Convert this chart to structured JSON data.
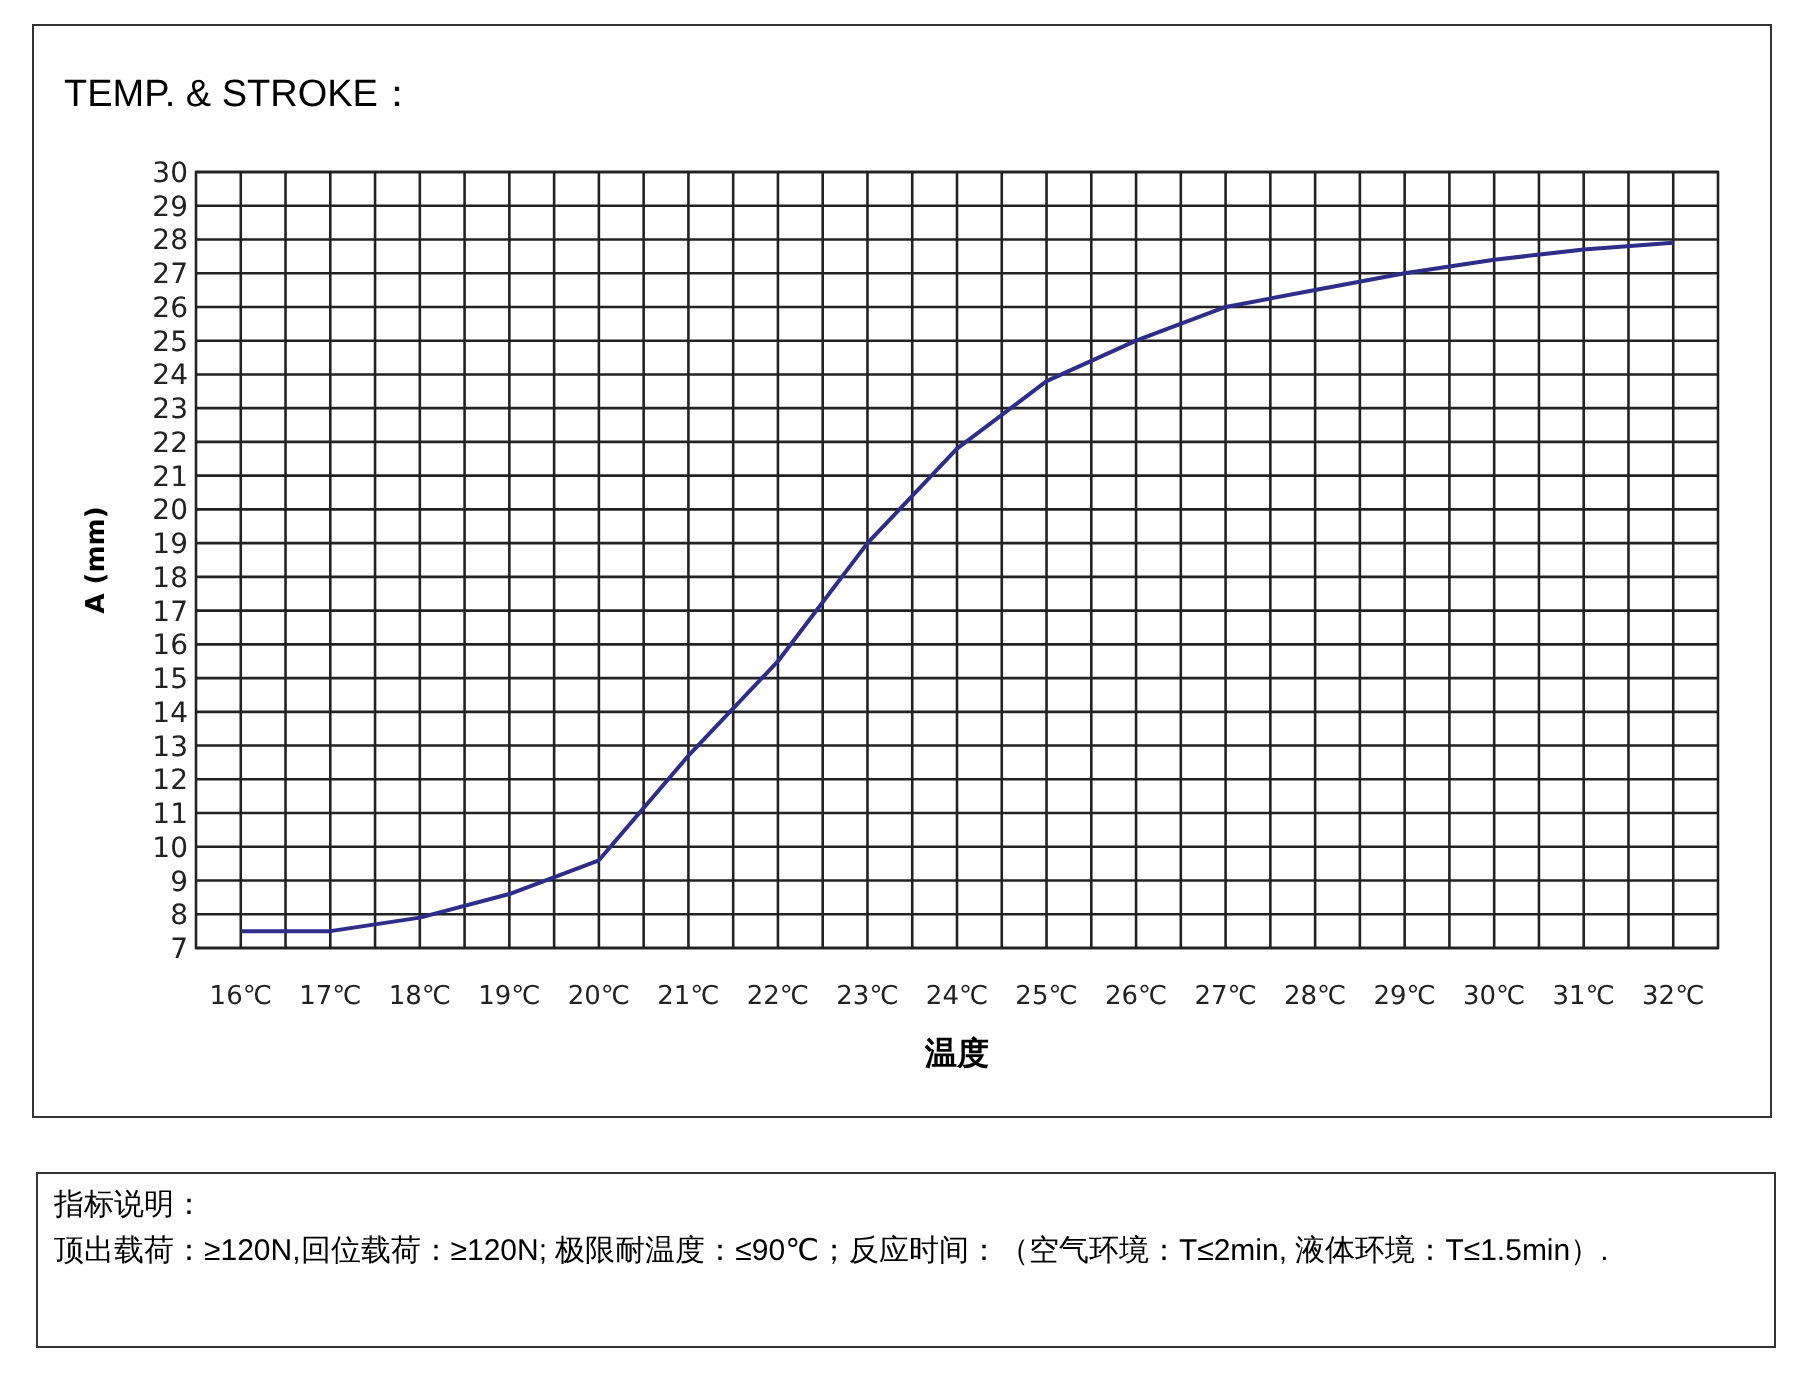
{
  "chart_data": {
    "type": "line",
    "title": "TEMP. & STROKE：",
    "xlabel": "温度",
    "ylabel": "A (mm)",
    "x": [
      16,
      17,
      18,
      19,
      20,
      21,
      22,
      23,
      24,
      25,
      26,
      27,
      28,
      29,
      30,
      31,
      32
    ],
    "series": [
      {
        "color": "#2e2e8a",
        "values": [
          7.5,
          7.5,
          7.9,
          8.6,
          9.6,
          12.7,
          15.5,
          19.0,
          21.8,
          23.8,
          25.0,
          26.0,
          26.5,
          27.0,
          27.4,
          27.7,
          27.9
        ]
      }
    ],
    "xlim": [
      15.5,
      32.5
    ],
    "xticks": [
      {
        "value": 16,
        "label": "16℃"
      },
      {
        "value": 16.5,
        "label": null
      },
      {
        "value": 17,
        "label": "17℃"
      },
      {
        "value": 17.5,
        "label": null
      },
      {
        "value": 18,
        "label": "18℃"
      },
      {
        "value": 18.5,
        "label": null
      },
      {
        "value": 19,
        "label": "19℃"
      },
      {
        "value": 19.5,
        "label": null
      },
      {
        "value": 20,
        "label": "20℃"
      },
      {
        "value": 20.5,
        "label": null
      },
      {
        "value": 21,
        "label": "21℃"
      },
      {
        "value": 21.5,
        "label": null
      },
      {
        "value": 22,
        "label": "22℃"
      },
      {
        "value": 22.5,
        "label": null
      },
      {
        "value": 23,
        "label": "23℃"
      },
      {
        "value": 23.5,
        "label": null
      },
      {
        "value": 24,
        "label": "24℃"
      },
      {
        "value": 24.5,
        "label": null
      },
      {
        "value": 25,
        "label": "25℃"
      },
      {
        "value": 25.5,
        "label": null
      },
      {
        "value": 26,
        "label": "26℃"
      },
      {
        "value": 26.5,
        "label": null
      },
      {
        "value": 27,
        "label": "27℃"
      },
      {
        "value": 27.5,
        "label": null
      },
      {
        "value": 28,
        "label": "28℃"
      },
      {
        "value": 28.5,
        "label": null
      },
      {
        "value": 29,
        "label": "29℃"
      },
      {
        "value": 29.5,
        "label": null
      },
      {
        "value": 30,
        "label": "30℃"
      },
      {
        "value": 30.5,
        "label": null
      },
      {
        "value": 31,
        "label": "31℃"
      },
      {
        "value": 31.5,
        "label": null
      },
      {
        "value": 32,
        "label": "32℃"
      }
    ],
    "ylim": [
      7,
      30
    ],
    "yticks": [
      7,
      8,
      9,
      10,
      11,
      12,
      13,
      14,
      15,
      16,
      17,
      18,
      19,
      20,
      21,
      22,
      23,
      24,
      25,
      26,
      27,
      28,
      29,
      30
    ],
    "grid": true,
    "annotations": [
      "指标说明：",
      "顶出载荷：≥120N,回位载荷：≥120N; 极限耐温度：≤90℃；反应时间：（空气环境：T≤2min, 液体环境：T≤1.5min）."
    ]
  }
}
